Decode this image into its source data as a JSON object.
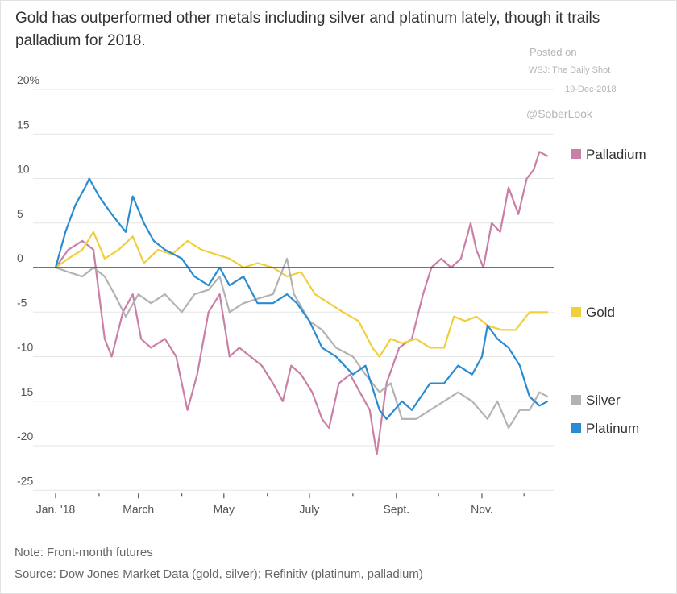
{
  "header": {
    "title": "Gold has outperformed other metals including silver and platinum lately, though it trails palladium for 2018."
  },
  "watermark": {
    "posted": "Posted on",
    "source": "WSJ: The Daily Shot",
    "date": "19-Dec-2018",
    "handle": "@SoberLook"
  },
  "footer": {
    "note": "Note: Front-month futures",
    "source": "Source: Dow Jones Market Data (gold, silver); Refinitiv (platinum, palladium)"
  },
  "chart_data": {
    "type": "line",
    "title": "Gold has outperformed other metals including silver and platinum lately, though it trails palladium for 2018.",
    "ylabel": "",
    "xlabel": "",
    "ylim": [
      -25,
      20
    ],
    "yticks": [
      "20%",
      "15",
      "10",
      "5",
      "0",
      "-5",
      "-10",
      "-15",
      "-20",
      "-25"
    ],
    "xlim": [
      "2018-01-01",
      "2018-12-18"
    ],
    "xticks": [
      "Jan. '18",
      "March",
      "May",
      "July",
      "Sept.",
      "Nov."
    ],
    "grid": true,
    "legend": "right, labels at line ends",
    "series": [
      {
        "name": "Palladium",
        "color": "#c97fa6",
        "points": [
          [
            "2018-01-01",
            0
          ],
          [
            "2018-01-10",
            2
          ],
          [
            "2018-01-20",
            3
          ],
          [
            "2018-01-28",
            2
          ],
          [
            "2018-02-05",
            -8
          ],
          [
            "2018-02-10",
            -10
          ],
          [
            "2018-02-18",
            -5
          ],
          [
            "2018-02-25",
            -3
          ],
          [
            "2018-03-03",
            -8
          ],
          [
            "2018-03-10",
            -9
          ],
          [
            "2018-03-20",
            -8
          ],
          [
            "2018-03-28",
            -10
          ],
          [
            "2018-04-05",
            -16
          ],
          [
            "2018-04-12",
            -12
          ],
          [
            "2018-04-20",
            -5
          ],
          [
            "2018-04-28",
            -3
          ],
          [
            "2018-05-05",
            -10
          ],
          [
            "2018-05-12",
            -9
          ],
          [
            "2018-05-20",
            -10
          ],
          [
            "2018-05-28",
            -11
          ],
          [
            "2018-06-05",
            -13
          ],
          [
            "2018-06-12",
            -15
          ],
          [
            "2018-06-18",
            -11
          ],
          [
            "2018-06-25",
            -12
          ],
          [
            "2018-07-03",
            -14
          ],
          [
            "2018-07-10",
            -17
          ],
          [
            "2018-07-15",
            -18
          ],
          [
            "2018-07-22",
            -13
          ],
          [
            "2018-07-30",
            -12
          ],
          [
            "2018-08-06",
            -14
          ],
          [
            "2018-08-13",
            -16
          ],
          [
            "2018-08-18",
            -21
          ],
          [
            "2018-08-25",
            -13
          ],
          [
            "2018-09-03",
            -9
          ],
          [
            "2018-09-12",
            -8
          ],
          [
            "2018-09-20",
            -3
          ],
          [
            "2018-09-26",
            0
          ],
          [
            "2018-10-03",
            1
          ],
          [
            "2018-10-10",
            0
          ],
          [
            "2018-10-17",
            1
          ],
          [
            "2018-10-24",
            5
          ],
          [
            "2018-10-28",
            2
          ],
          [
            "2018-11-02",
            0
          ],
          [
            "2018-11-08",
            5
          ],
          [
            "2018-11-14",
            4
          ],
          [
            "2018-11-20",
            9
          ],
          [
            "2018-11-27",
            6
          ],
          [
            "2018-12-03",
            10
          ],
          [
            "2018-12-08",
            11
          ],
          [
            "2018-12-12",
            13
          ],
          [
            "2018-12-18",
            12.5
          ]
        ]
      },
      {
        "name": "Gold",
        "color": "#f0cf3d",
        "points": [
          [
            "2018-01-01",
            0
          ],
          [
            "2018-01-10",
            1
          ],
          [
            "2018-01-20",
            2
          ],
          [
            "2018-01-28",
            4
          ],
          [
            "2018-02-05",
            1
          ],
          [
            "2018-02-15",
            2
          ],
          [
            "2018-02-25",
            3.5
          ],
          [
            "2018-03-05",
            0.5
          ],
          [
            "2018-03-15",
            2
          ],
          [
            "2018-03-25",
            1.5
          ],
          [
            "2018-04-05",
            3
          ],
          [
            "2018-04-15",
            2
          ],
          [
            "2018-04-25",
            1.5
          ],
          [
            "2018-05-05",
            1
          ],
          [
            "2018-05-15",
            0
          ],
          [
            "2018-05-25",
            0.5
          ],
          [
            "2018-06-05",
            0
          ],
          [
            "2018-06-15",
            -1
          ],
          [
            "2018-06-25",
            -0.5
          ],
          [
            "2018-07-05",
            -3
          ],
          [
            "2018-07-15",
            -4
          ],
          [
            "2018-07-25",
            -5
          ],
          [
            "2018-08-05",
            -6
          ],
          [
            "2018-08-15",
            -9
          ],
          [
            "2018-08-20",
            -10
          ],
          [
            "2018-08-28",
            -8
          ],
          [
            "2018-09-05",
            -8.5
          ],
          [
            "2018-09-15",
            -8
          ],
          [
            "2018-09-25",
            -9
          ],
          [
            "2018-10-05",
            -9
          ],
          [
            "2018-10-12",
            -5.5
          ],
          [
            "2018-10-20",
            -6
          ],
          [
            "2018-10-28",
            -5.5
          ],
          [
            "2018-11-05",
            -6.5
          ],
          [
            "2018-11-15",
            -7
          ],
          [
            "2018-11-25",
            -7
          ],
          [
            "2018-12-05",
            -5
          ],
          [
            "2018-12-18",
            -5
          ]
        ]
      },
      {
        "name": "Silver",
        "color": "#b3b3b3",
        "points": [
          [
            "2018-01-01",
            0
          ],
          [
            "2018-01-10",
            -0.5
          ],
          [
            "2018-01-20",
            -1
          ],
          [
            "2018-01-28",
            0
          ],
          [
            "2018-02-05",
            -1
          ],
          [
            "2018-02-12",
            -3
          ],
          [
            "2018-02-20",
            -5.5
          ],
          [
            "2018-03-01",
            -3
          ],
          [
            "2018-03-10",
            -4
          ],
          [
            "2018-03-20",
            -3
          ],
          [
            "2018-04-01",
            -5
          ],
          [
            "2018-04-10",
            -3
          ],
          [
            "2018-04-20",
            -2.5
          ],
          [
            "2018-04-28",
            -1
          ],
          [
            "2018-05-05",
            -5
          ],
          [
            "2018-05-15",
            -4
          ],
          [
            "2018-05-25",
            -3.5
          ],
          [
            "2018-06-05",
            -3
          ],
          [
            "2018-06-15",
            1
          ],
          [
            "2018-06-20",
            -3
          ],
          [
            "2018-07-01",
            -6
          ],
          [
            "2018-07-10",
            -7
          ],
          [
            "2018-07-20",
            -9
          ],
          [
            "2018-08-01",
            -10
          ],
          [
            "2018-08-10",
            -12
          ],
          [
            "2018-08-20",
            -14
          ],
          [
            "2018-08-28",
            -13
          ],
          [
            "2018-09-05",
            -17
          ],
          [
            "2018-09-15",
            -17
          ],
          [
            "2018-09-25",
            -16
          ],
          [
            "2018-10-05",
            -15
          ],
          [
            "2018-10-15",
            -14
          ],
          [
            "2018-10-25",
            -15
          ],
          [
            "2018-11-05",
            -17
          ],
          [
            "2018-11-12",
            -15
          ],
          [
            "2018-11-20",
            -18
          ],
          [
            "2018-11-28",
            -16
          ],
          [
            "2018-12-05",
            -16
          ],
          [
            "2018-12-12",
            -14
          ],
          [
            "2018-12-18",
            -14.5
          ]
        ]
      },
      {
        "name": "Platinum",
        "color": "#2a8cd0",
        "points": [
          [
            "2018-01-01",
            0
          ],
          [
            "2018-01-08",
            4
          ],
          [
            "2018-01-15",
            7
          ],
          [
            "2018-01-22",
            9
          ],
          [
            "2018-01-25",
            10
          ],
          [
            "2018-02-01",
            8
          ],
          [
            "2018-02-10",
            6
          ],
          [
            "2018-02-20",
            4
          ],
          [
            "2018-02-25",
            8
          ],
          [
            "2018-03-05",
            5
          ],
          [
            "2018-03-12",
            3
          ],
          [
            "2018-03-20",
            2
          ],
          [
            "2018-04-01",
            1
          ],
          [
            "2018-04-10",
            -1
          ],
          [
            "2018-04-20",
            -2
          ],
          [
            "2018-04-28",
            0
          ],
          [
            "2018-05-05",
            -2
          ],
          [
            "2018-05-15",
            -1
          ],
          [
            "2018-05-25",
            -4
          ],
          [
            "2018-06-05",
            -4
          ],
          [
            "2018-06-15",
            -3
          ],
          [
            "2018-06-22",
            -4
          ],
          [
            "2018-07-01",
            -6
          ],
          [
            "2018-07-10",
            -9
          ],
          [
            "2018-07-20",
            -10
          ],
          [
            "2018-08-01",
            -12
          ],
          [
            "2018-08-10",
            -11
          ],
          [
            "2018-08-20",
            -16
          ],
          [
            "2018-08-25",
            -17
          ],
          [
            "2018-09-05",
            -15
          ],
          [
            "2018-09-12",
            -16
          ],
          [
            "2018-09-25",
            -13
          ],
          [
            "2018-10-05",
            -13
          ],
          [
            "2018-10-15",
            -11
          ],
          [
            "2018-10-25",
            -12
          ],
          [
            "2018-11-01",
            -10
          ],
          [
            "2018-11-05",
            -6.5
          ],
          [
            "2018-11-12",
            -8
          ],
          [
            "2018-11-20",
            -9
          ],
          [
            "2018-11-28",
            -11
          ],
          [
            "2018-12-05",
            -14.5
          ],
          [
            "2018-12-12",
            -15.5
          ],
          [
            "2018-12-18",
            -15
          ]
        ]
      }
    ]
  }
}
